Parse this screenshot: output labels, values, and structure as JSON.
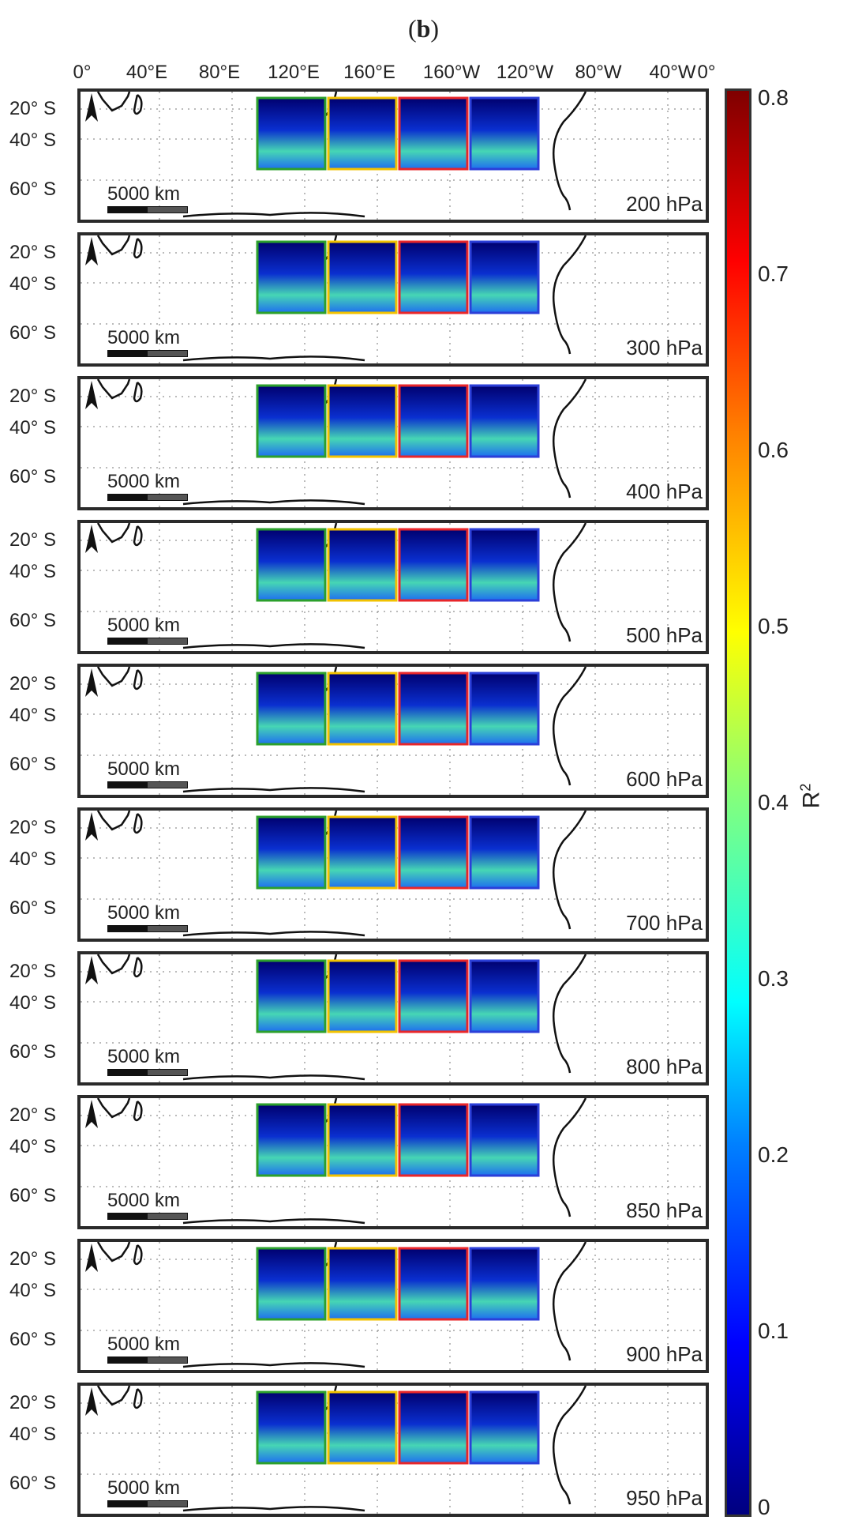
{
  "figure_label": "b",
  "longitude_labels": [
    "0°",
    "40°E",
    "80°E",
    "120°E",
    "160°E",
    "160°W",
    "120°W",
    "80°W",
    "40°W",
    "0°"
  ],
  "latitude_labels": [
    "20° S",
    "40° S",
    "60° S"
  ],
  "scale_bar_label": "5000 km",
  "panels": [
    {
      "pressure": "200 hPa"
    },
    {
      "pressure": "300 hPa"
    },
    {
      "pressure": "400 hPa"
    },
    {
      "pressure": "500 hPa"
    },
    {
      "pressure": "600 hPa"
    },
    {
      "pressure": "700 hPa"
    },
    {
      "pressure": "800 hPa"
    },
    {
      "pressure": "850 hPa"
    },
    {
      "pressure": "900 hPa"
    },
    {
      "pressure": "950 hPa"
    }
  ],
  "region_box_colors": [
    "#2ca02c",
    "#f2c200",
    "#e8262a",
    "#2b3fd8"
  ],
  "colorbar": {
    "title": "R",
    "title_superscript": "2",
    "ticks": [
      "0.8",
      "0.7",
      "0.6",
      "0.5",
      "0.4",
      "0.3",
      "0.2",
      "0.1",
      "0"
    ],
    "range": [
      0,
      0.8
    ],
    "colormap": "jet"
  }
}
